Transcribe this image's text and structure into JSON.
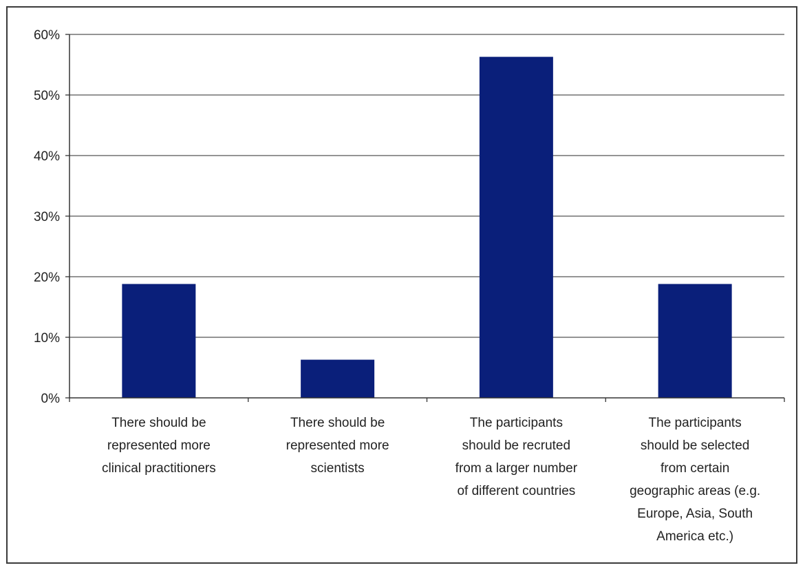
{
  "chart_data": {
    "type": "bar",
    "title": "",
    "xlabel": "",
    "ylabel": "",
    "ylim": [
      0,
      60
    ],
    "y_tick_values": [
      0,
      10,
      20,
      30,
      40,
      50,
      60
    ],
    "y_tick_labels": [
      "0%",
      "10%",
      "20%",
      "30%",
      "40%",
      "50%",
      "60%"
    ],
    "grid": true,
    "legend": "none",
    "bar_color": "#0a1f7a",
    "categories": [
      [
        "There should be",
        "represented more",
        "clinical practitioners"
      ],
      [
        "There should be",
        "represented more",
        "scientists"
      ],
      [
        "The participants",
        "should be recruted",
        "from a larger number",
        "of different countries"
      ],
      [
        "The participants",
        "should be selected",
        "from certain",
        "geographic areas (e.g.",
        "Europe,  Asia, South",
        "America etc.)"
      ]
    ],
    "values": [
      18.8,
      6.3,
      56.3,
      18.8
    ]
  }
}
